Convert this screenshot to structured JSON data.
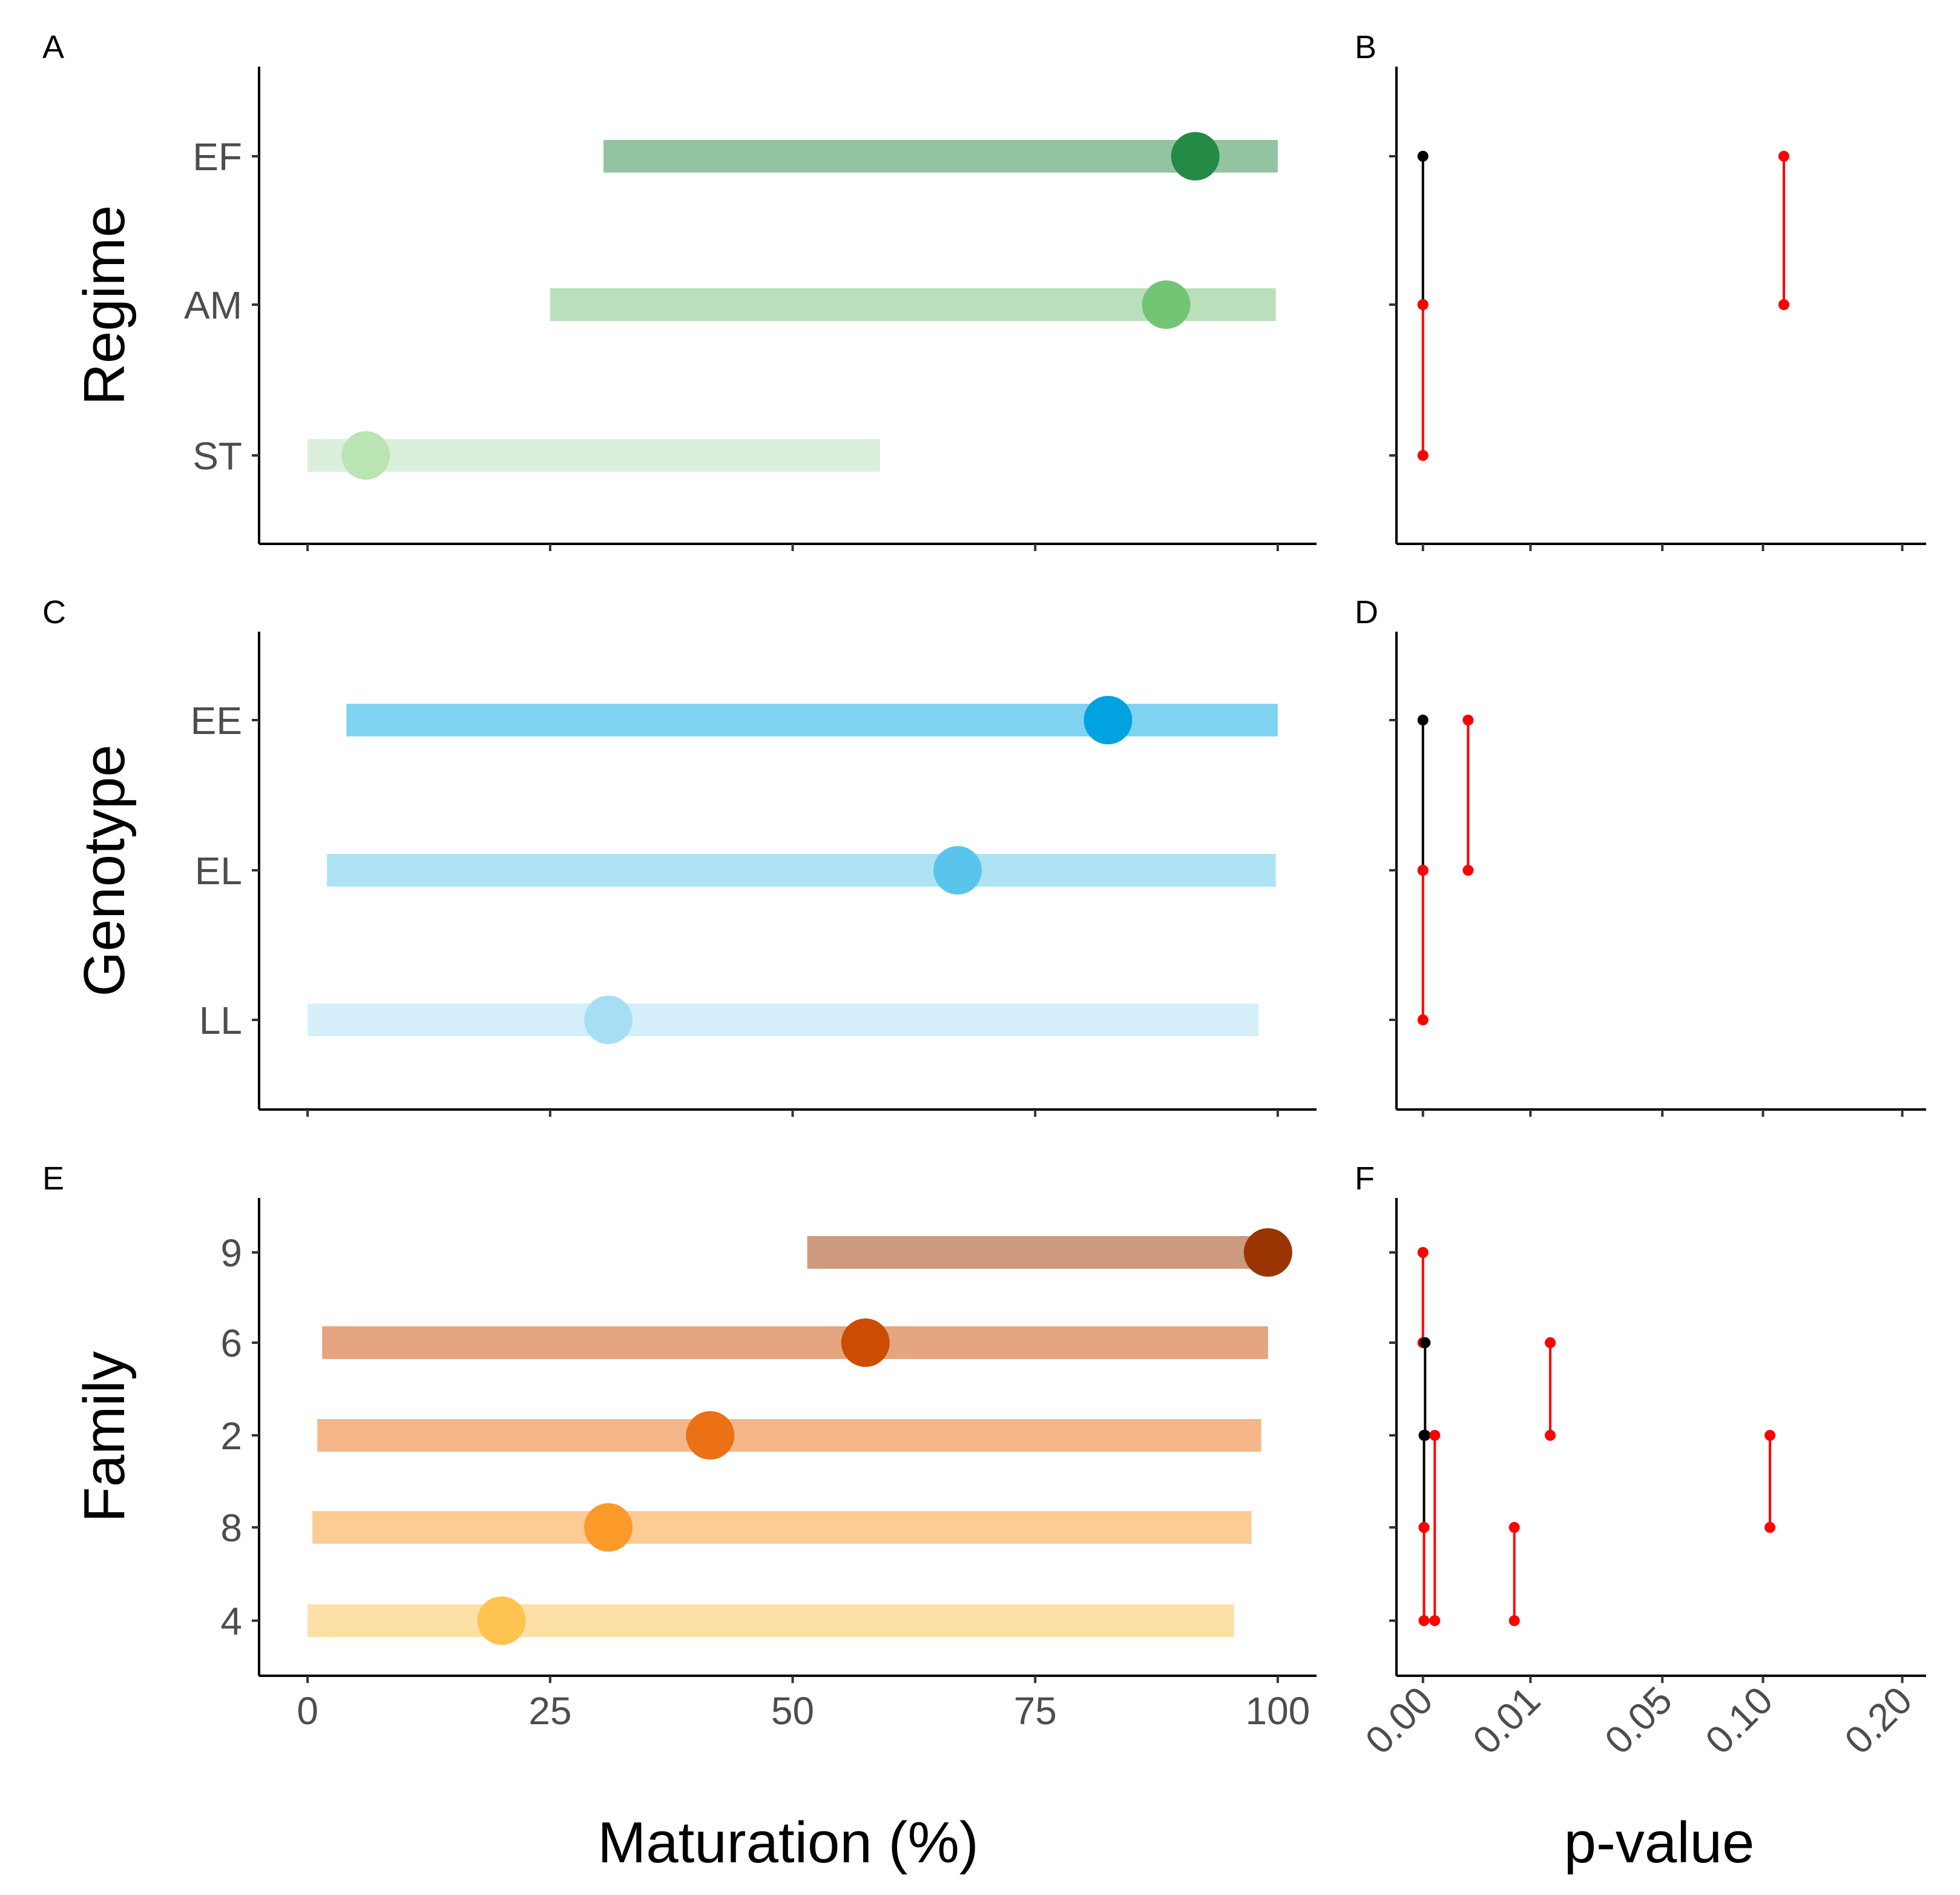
{
  "chart_data": {
    "type": "dot-interval",
    "x_title": "Maturation (%)",
    "p_title": "p-value",
    "x_ticks": [
      0,
      25,
      50,
      75,
      100
    ],
    "x_range": [
      -5,
      104
    ],
    "p_ticks": [
      "0.00",
      "0.01",
      "0.05",
      "0.10",
      "0.20"
    ],
    "p_range": [
      -0.045,
      0.21
    ],
    "panels": [
      {
        "letter": "A",
        "letter_right": "B",
        "ylabel": "Regime",
        "categories": [
          {
            "label": "EF",
            "low": 30.5,
            "high": 100,
            "point": 91.5,
            "color": "#238b45",
            "bar_color": "#93c4a2"
          },
          {
            "label": "AM",
            "low": 25,
            "high": 99.8,
            "point": 88.5,
            "color": "#74c476",
            "bar_color": "#b9e0bb"
          },
          {
            "label": "ST",
            "low": 0,
            "high": 59,
            "point": 6,
            "color": "#bae4b3",
            "bar_color": "#dbf0dc"
          }
        ],
        "pvalues": [
          {
            "from": "EF",
            "to": "AM",
            "p": 0.0,
            "color": "#000000"
          },
          {
            "from": "AM",
            "to": "ST",
            "p": 0.0,
            "color": "#ff0000"
          },
          {
            "from": "EF",
            "to": "AM",
            "p": 0.115,
            "color": "#ff0000"
          }
        ]
      },
      {
        "letter": "C",
        "letter_right": "D",
        "ylabel": "Genotype",
        "categories": [
          {
            "label": "EE",
            "low": 4,
            "high": 100,
            "point": 82.5,
            "color": "#00a2e0",
            "bar_color": "#80d3f0"
          },
          {
            "label": "EL",
            "low": 2,
            "high": 99.8,
            "point": 67,
            "color": "#59c5ec",
            "bar_color": "#aee3f4"
          },
          {
            "label": "LL",
            "low": 0,
            "high": 98,
            "point": 31,
            "color": "#a8def4",
            "bar_color": "#d4effa"
          }
        ],
        "pvalues": [
          {
            "from": "EE",
            "to": "EL",
            "p": 0.0,
            "color": "#000000"
          },
          {
            "from": "EL",
            "to": "LL",
            "p": 0.0,
            "color": "#ff0000"
          },
          {
            "from": "EE",
            "to": "EL",
            "p": 0.0042,
            "color": "#ff0000"
          }
        ]
      },
      {
        "letter": "E",
        "letter_right": "F",
        "ylabel": "Family",
        "categories": [
          {
            "label": "9",
            "low": 51.5,
            "high": 99.5,
            "point": 99,
            "color": "#9a3503",
            "bar_color": "#cd997f"
          },
          {
            "label": "6",
            "low": 1.5,
            "high": 99,
            "point": 57.5,
            "color": "#cc4c02",
            "bar_color": "#e5a581"
          },
          {
            "label": "2",
            "low": 1,
            "high": 98.3,
            "point": 41.5,
            "color": "#ec7014",
            "bar_color": "#f5b78a"
          },
          {
            "label": "8",
            "low": 0.5,
            "high": 97.3,
            "point": 31,
            "color": "#fb9a29",
            "bar_color": "#fdcb94"
          },
          {
            "label": "4",
            "low": 0,
            "high": 95.5,
            "point": 20,
            "color": "#fec44f",
            "bar_color": "#fde0a6"
          }
        ],
        "pvalues": [
          {
            "from": "9",
            "to": "6",
            "p": 0.0,
            "color": "#ff0000"
          },
          {
            "from": "6",
            "to": "2",
            "p": 0.0002,
            "color": "#000000"
          },
          {
            "from": "2",
            "to": "8",
            "p": 0.0001,
            "color": "#000000"
          },
          {
            "from": "8",
            "to": "4",
            "p": 0.0001,
            "color": "#ff0000"
          },
          {
            "from": "2",
            "to": "4",
            "p": 0.0011,
            "color": "#ff0000"
          },
          {
            "from": "8",
            "to": "4",
            "p": 0.0085,
            "color": "#ff0000"
          },
          {
            "from": "6",
            "to": "2",
            "p": 0.016,
            "color": "#ff0000"
          },
          {
            "from": "2",
            "to": "8",
            "p": 0.105,
            "color": "#ff0000"
          }
        ]
      }
    ]
  }
}
